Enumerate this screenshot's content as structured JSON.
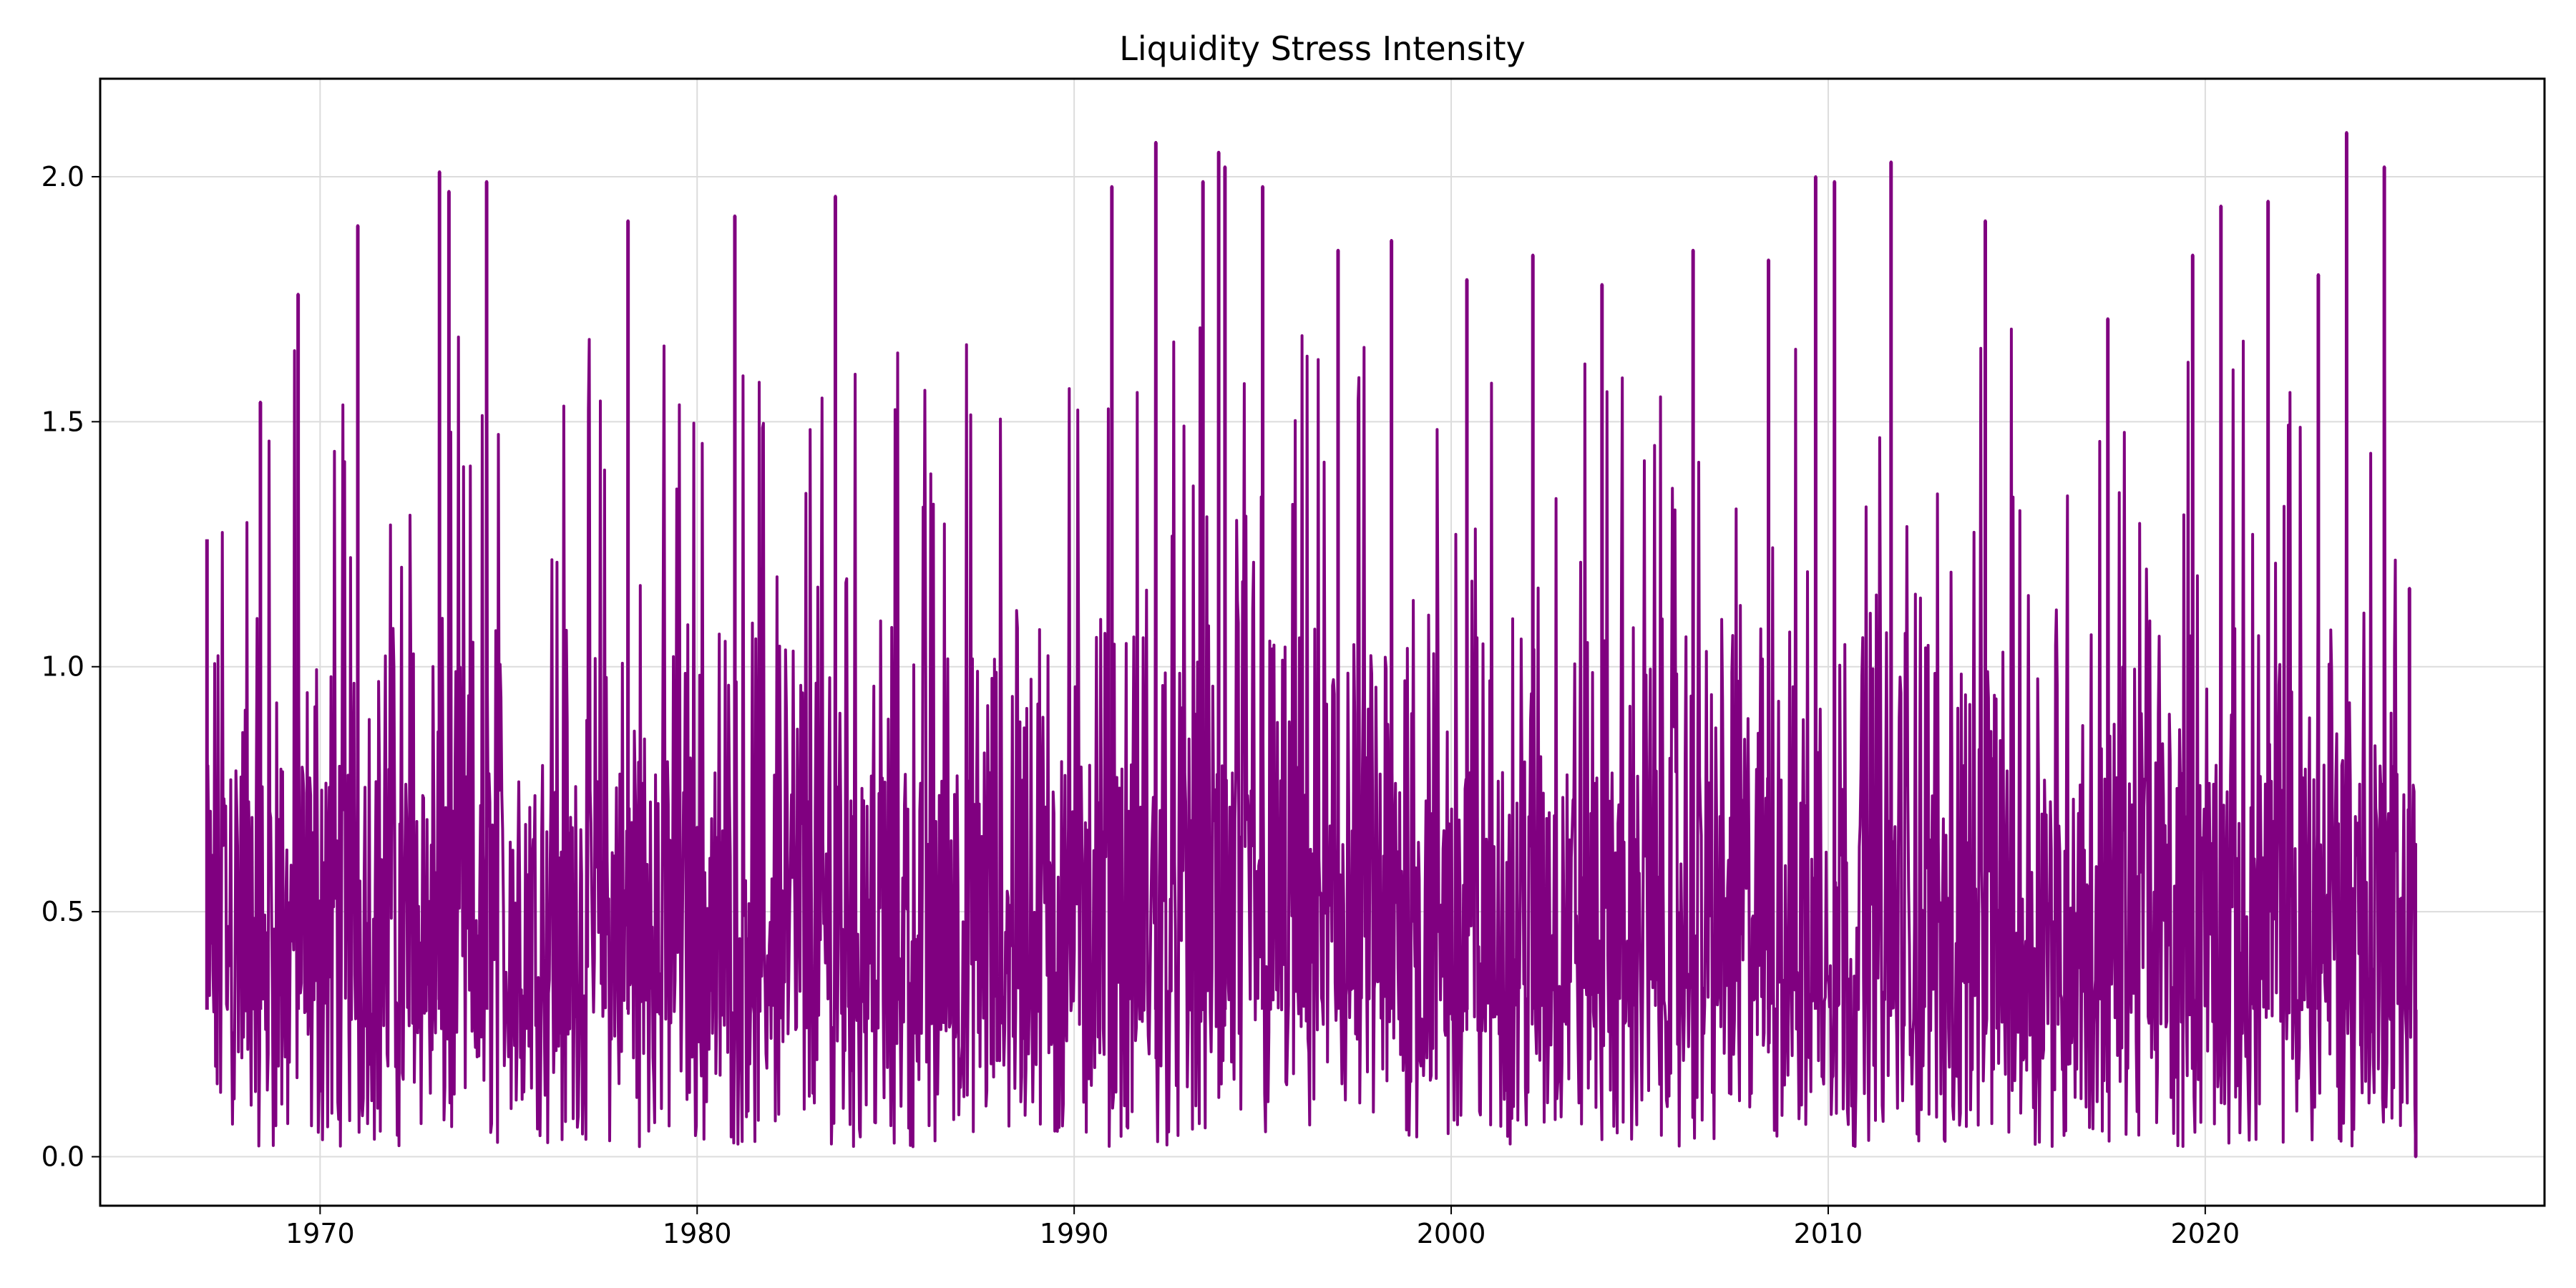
{
  "chart_data": {
    "type": "line",
    "title": "Liquidity Stress Intensity",
    "xlabel": "",
    "ylabel": "",
    "xlim": [
      "1964-03-01",
      "2028-12-31"
    ],
    "ylim": [
      -0.1,
      2.2
    ],
    "x_ticks": [
      "1970",
      "1980",
      "1990",
      "2000",
      "2010",
      "2020"
    ],
    "y_ticks": [
      "0.0",
      "0.5",
      "1.0",
      "1.5",
      "2.0"
    ],
    "grid": true,
    "legend": "none",
    "line_color": "#800080",
    "series": [
      {
        "x": [
          "1967-01",
          "1968-06",
          "1969-06",
          "1971-01",
          "1973-03",
          "1973-06",
          "1974-06",
          "1978-03",
          "1981-01",
          "1983-09",
          "1991-01",
          "1992-03",
          "1993-06",
          "1993-11",
          "1994-01",
          "1995-01",
          "1997-01",
          "1998-06",
          "2000-06",
          "2002-03",
          "2004-01",
          "2006-06",
          "2008-06",
          "2009-09",
          "2010-03",
          "2011-09",
          "2014-03",
          "2017-06",
          "2019-09",
          "2020-06",
          "2021-09",
          "2023-01",
          "2023-10",
          "2024-10",
          "2025-06",
          "2025-08"
        ],
        "y": [
          1.26,
          1.54,
          1.76,
          1.9,
          2.01,
          1.97,
          1.99,
          1.91,
          1.92,
          1.96,
          1.98,
          2.07,
          1.99,
          2.05,
          2.02,
          1.98,
          1.85,
          1.87,
          1.79,
          1.84,
          1.78,
          1.85,
          1.83,
          2.0,
          1.99,
          2.03,
          1.91,
          1.71,
          1.84,
          1.94,
          1.95,
          1.8,
          2.09,
          2.02,
          1.16,
          0.0
        ]
      }
    ]
  }
}
